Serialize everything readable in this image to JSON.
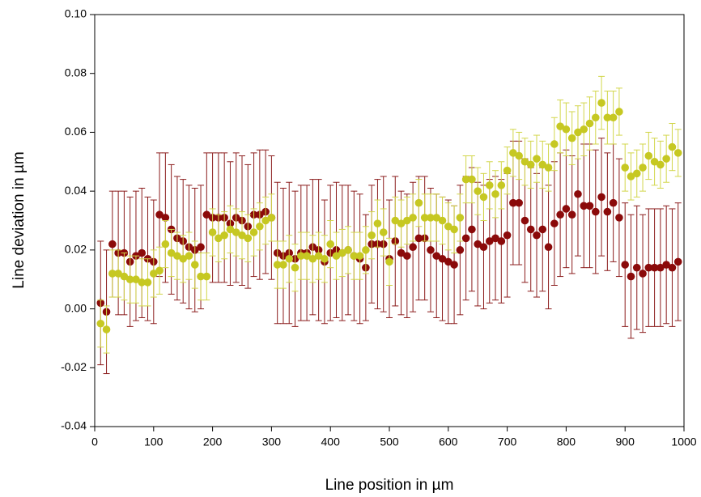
{
  "chart_data": {
    "type": "scatter",
    "xlabel": "Line position in µm",
    "ylabel": "Line deviation in µm",
    "xlim": [
      0,
      1000
    ],
    "ylim": [
      -0.04,
      0.1
    ],
    "xticks": [
      0,
      100,
      200,
      300,
      400,
      500,
      600,
      700,
      800,
      900,
      1000
    ],
    "yticks": [
      {
        "value": -0.04,
        "label": "-0.04"
      },
      {
        "value": -0.02,
        "label": "-0.02"
      },
      {
        "value": 0.0,
        "label": "0.00"
      },
      {
        "value": 0.02,
        "label": "0.02"
      },
      {
        "value": 0.04,
        "label": "0.04"
      },
      {
        "value": 0.06,
        "label": "0.06"
      },
      {
        "value": 0.08,
        "label": "0.08"
      },
      {
        "value": 0.1,
        "label": "0.10"
      }
    ],
    "x": [
      10,
      20,
      30,
      40,
      50,
      60,
      70,
      80,
      90,
      100,
      110,
      120,
      130,
      140,
      150,
      160,
      170,
      180,
      190,
      200,
      210,
      220,
      230,
      240,
      250,
      260,
      270,
      280,
      290,
      300,
      310,
      320,
      330,
      340,
      350,
      360,
      370,
      380,
      390,
      400,
      410,
      420,
      430,
      440,
      450,
      460,
      470,
      480,
      490,
      500,
      510,
      520,
      530,
      540,
      550,
      560,
      570,
      580,
      590,
      600,
      610,
      620,
      630,
      640,
      650,
      660,
      670,
      680,
      690,
      700,
      710,
      720,
      730,
      740,
      750,
      760,
      770,
      780,
      790,
      800,
      810,
      820,
      830,
      840,
      850,
      860,
      870,
      880,
      890,
      900,
      910,
      920,
      930,
      940,
      950,
      960,
      970,
      980,
      990
    ],
    "series": [
      {
        "color": "#8b0a0a",
        "errcolor": "#8b1c1c",
        "values": [
          0.002,
          -0.001,
          0.022,
          0.019,
          0.019,
          0.016,
          0.018,
          0.019,
          0.017,
          0.016,
          0.032,
          0.031,
          0.027,
          0.024,
          0.023,
          0.021,
          0.02,
          0.021,
          0.032,
          0.031,
          0.031,
          0.031,
          0.029,
          0.031,
          0.03,
          0.028,
          0.032,
          0.032,
          0.033,
          0.031,
          0.019,
          0.018,
          0.019,
          0.017,
          0.019,
          0.019,
          0.021,
          0.02,
          0.016,
          0.019,
          0.02,
          0.019,
          0.02,
          0.018,
          0.017,
          0.014,
          0.022,
          0.022,
          0.022,
          0.017,
          0.023,
          0.019,
          0.018,
          0.021,
          0.024,
          0.024,
          0.02,
          0.018,
          0.017,
          0.016,
          0.015,
          0.02,
          0.024,
          0.027,
          0.022,
          0.021,
          0.023,
          0.024,
          0.023,
          0.025,
          0.036,
          0.036,
          0.03,
          0.027,
          0.025,
          0.027,
          0.021,
          0.029,
          0.032,
          0.034,
          0.032,
          0.039,
          0.035,
          0.035,
          0.033,
          0.038,
          0.033,
          0.036,
          0.031,
          0.015,
          0.011,
          0.014,
          0.012,
          0.014,
          0.014,
          0.014,
          0.015,
          0.014,
          0.016
        ],
        "errors": [
          0.021,
          0.021,
          0.018,
          0.021,
          0.021,
          0.022,
          0.022,
          0.022,
          0.021,
          0.021,
          0.021,
          0.022,
          0.022,
          0.021,
          0.021,
          0.021,
          0.021,
          0.021,
          0.021,
          0.022,
          0.022,
          0.022,
          0.021,
          0.022,
          0.022,
          0.021,
          0.021,
          0.022,
          0.021,
          0.021,
          0.024,
          0.023,
          0.024,
          0.023,
          0.023,
          0.023,
          0.023,
          0.024,
          0.021,
          0.023,
          0.023,
          0.023,
          0.022,
          0.022,
          0.022,
          0.018,
          0.02,
          0.022,
          0.023,
          0.02,
          0.022,
          0.021,
          0.021,
          0.022,
          0.021,
          0.021,
          0.021,
          0.021,
          0.021,
          0.021,
          0.02,
          0.022,
          0.021,
          0.021,
          0.021,
          0.021,
          0.021,
          0.021,
          0.021,
          0.021,
          0.021,
          0.021,
          0.021,
          0.021,
          0.021,
          0.021,
          0.021,
          0.021,
          0.021,
          0.02,
          0.02,
          0.021,
          0.021,
          0.021,
          0.021,
          0.02,
          0.02,
          0.02,
          0.02,
          0.021,
          0.021,
          0.021,
          0.02,
          0.02,
          0.02,
          0.02,
          0.02,
          0.02,
          0.02
        ]
      },
      {
        "color": "#c6c822",
        "errcolor": "#d2d64a",
        "values": [
          -0.005,
          -0.007,
          0.012,
          0.012,
          0.011,
          0.01,
          0.01,
          0.009,
          0.009,
          0.012,
          0.013,
          0.022,
          0.019,
          0.018,
          0.017,
          0.018,
          0.015,
          0.011,
          0.011,
          0.026,
          0.024,
          0.025,
          0.027,
          0.026,
          0.025,
          0.024,
          0.026,
          0.028,
          0.03,
          0.031,
          0.015,
          0.015,
          0.017,
          0.014,
          0.018,
          0.018,
          0.017,
          0.018,
          0.017,
          0.022,
          0.018,
          0.019,
          0.02,
          0.018,
          0.018,
          0.02,
          0.025,
          0.029,
          0.026,
          0.016,
          0.03,
          0.029,
          0.03,
          0.031,
          0.036,
          0.031,
          0.031,
          0.031,
          0.03,
          0.028,
          0.027,
          0.031,
          0.044,
          0.044,
          0.04,
          0.038,
          0.042,
          0.039,
          0.042,
          0.047,
          0.053,
          0.052,
          0.05,
          0.049,
          0.051,
          0.049,
          0.048,
          0.056,
          0.062,
          0.061,
          0.058,
          0.06,
          0.061,
          0.063,
          0.065,
          0.07,
          0.065,
          0.065,
          0.067,
          0.048,
          0.045,
          0.046,
          0.048,
          0.052,
          0.05,
          0.049,
          0.051,
          0.055,
          0.053
        ],
        "errors": [
          0.008,
          0.008,
          0.008,
          0.008,
          0.008,
          0.008,
          0.008,
          0.008,
          0.008,
          0.008,
          0.008,
          0.008,
          0.008,
          0.008,
          0.008,
          0.008,
          0.008,
          0.008,
          0.008,
          0.008,
          0.008,
          0.008,
          0.008,
          0.008,
          0.008,
          0.008,
          0.008,
          0.008,
          0.008,
          0.008,
          0.008,
          0.008,
          0.008,
          0.008,
          0.008,
          0.008,
          0.008,
          0.008,
          0.008,
          0.008,
          0.008,
          0.008,
          0.008,
          0.008,
          0.008,
          0.008,
          0.008,
          0.008,
          0.008,
          0.008,
          0.008,
          0.008,
          0.008,
          0.008,
          0.008,
          0.008,
          0.008,
          0.008,
          0.008,
          0.008,
          0.008,
          0.008,
          0.008,
          0.008,
          0.008,
          0.008,
          0.008,
          0.008,
          0.008,
          0.008,
          0.008,
          0.008,
          0.008,
          0.008,
          0.008,
          0.008,
          0.008,
          0.009,
          0.009,
          0.009,
          0.009,
          0.009,
          0.009,
          0.009,
          0.009,
          0.009,
          0.009,
          0.009,
          0.008,
          0.008,
          0.008,
          0.008,
          0.008,
          0.008,
          0.008,
          0.008,
          0.008,
          0.008,
          0.008
        ]
      }
    ]
  }
}
